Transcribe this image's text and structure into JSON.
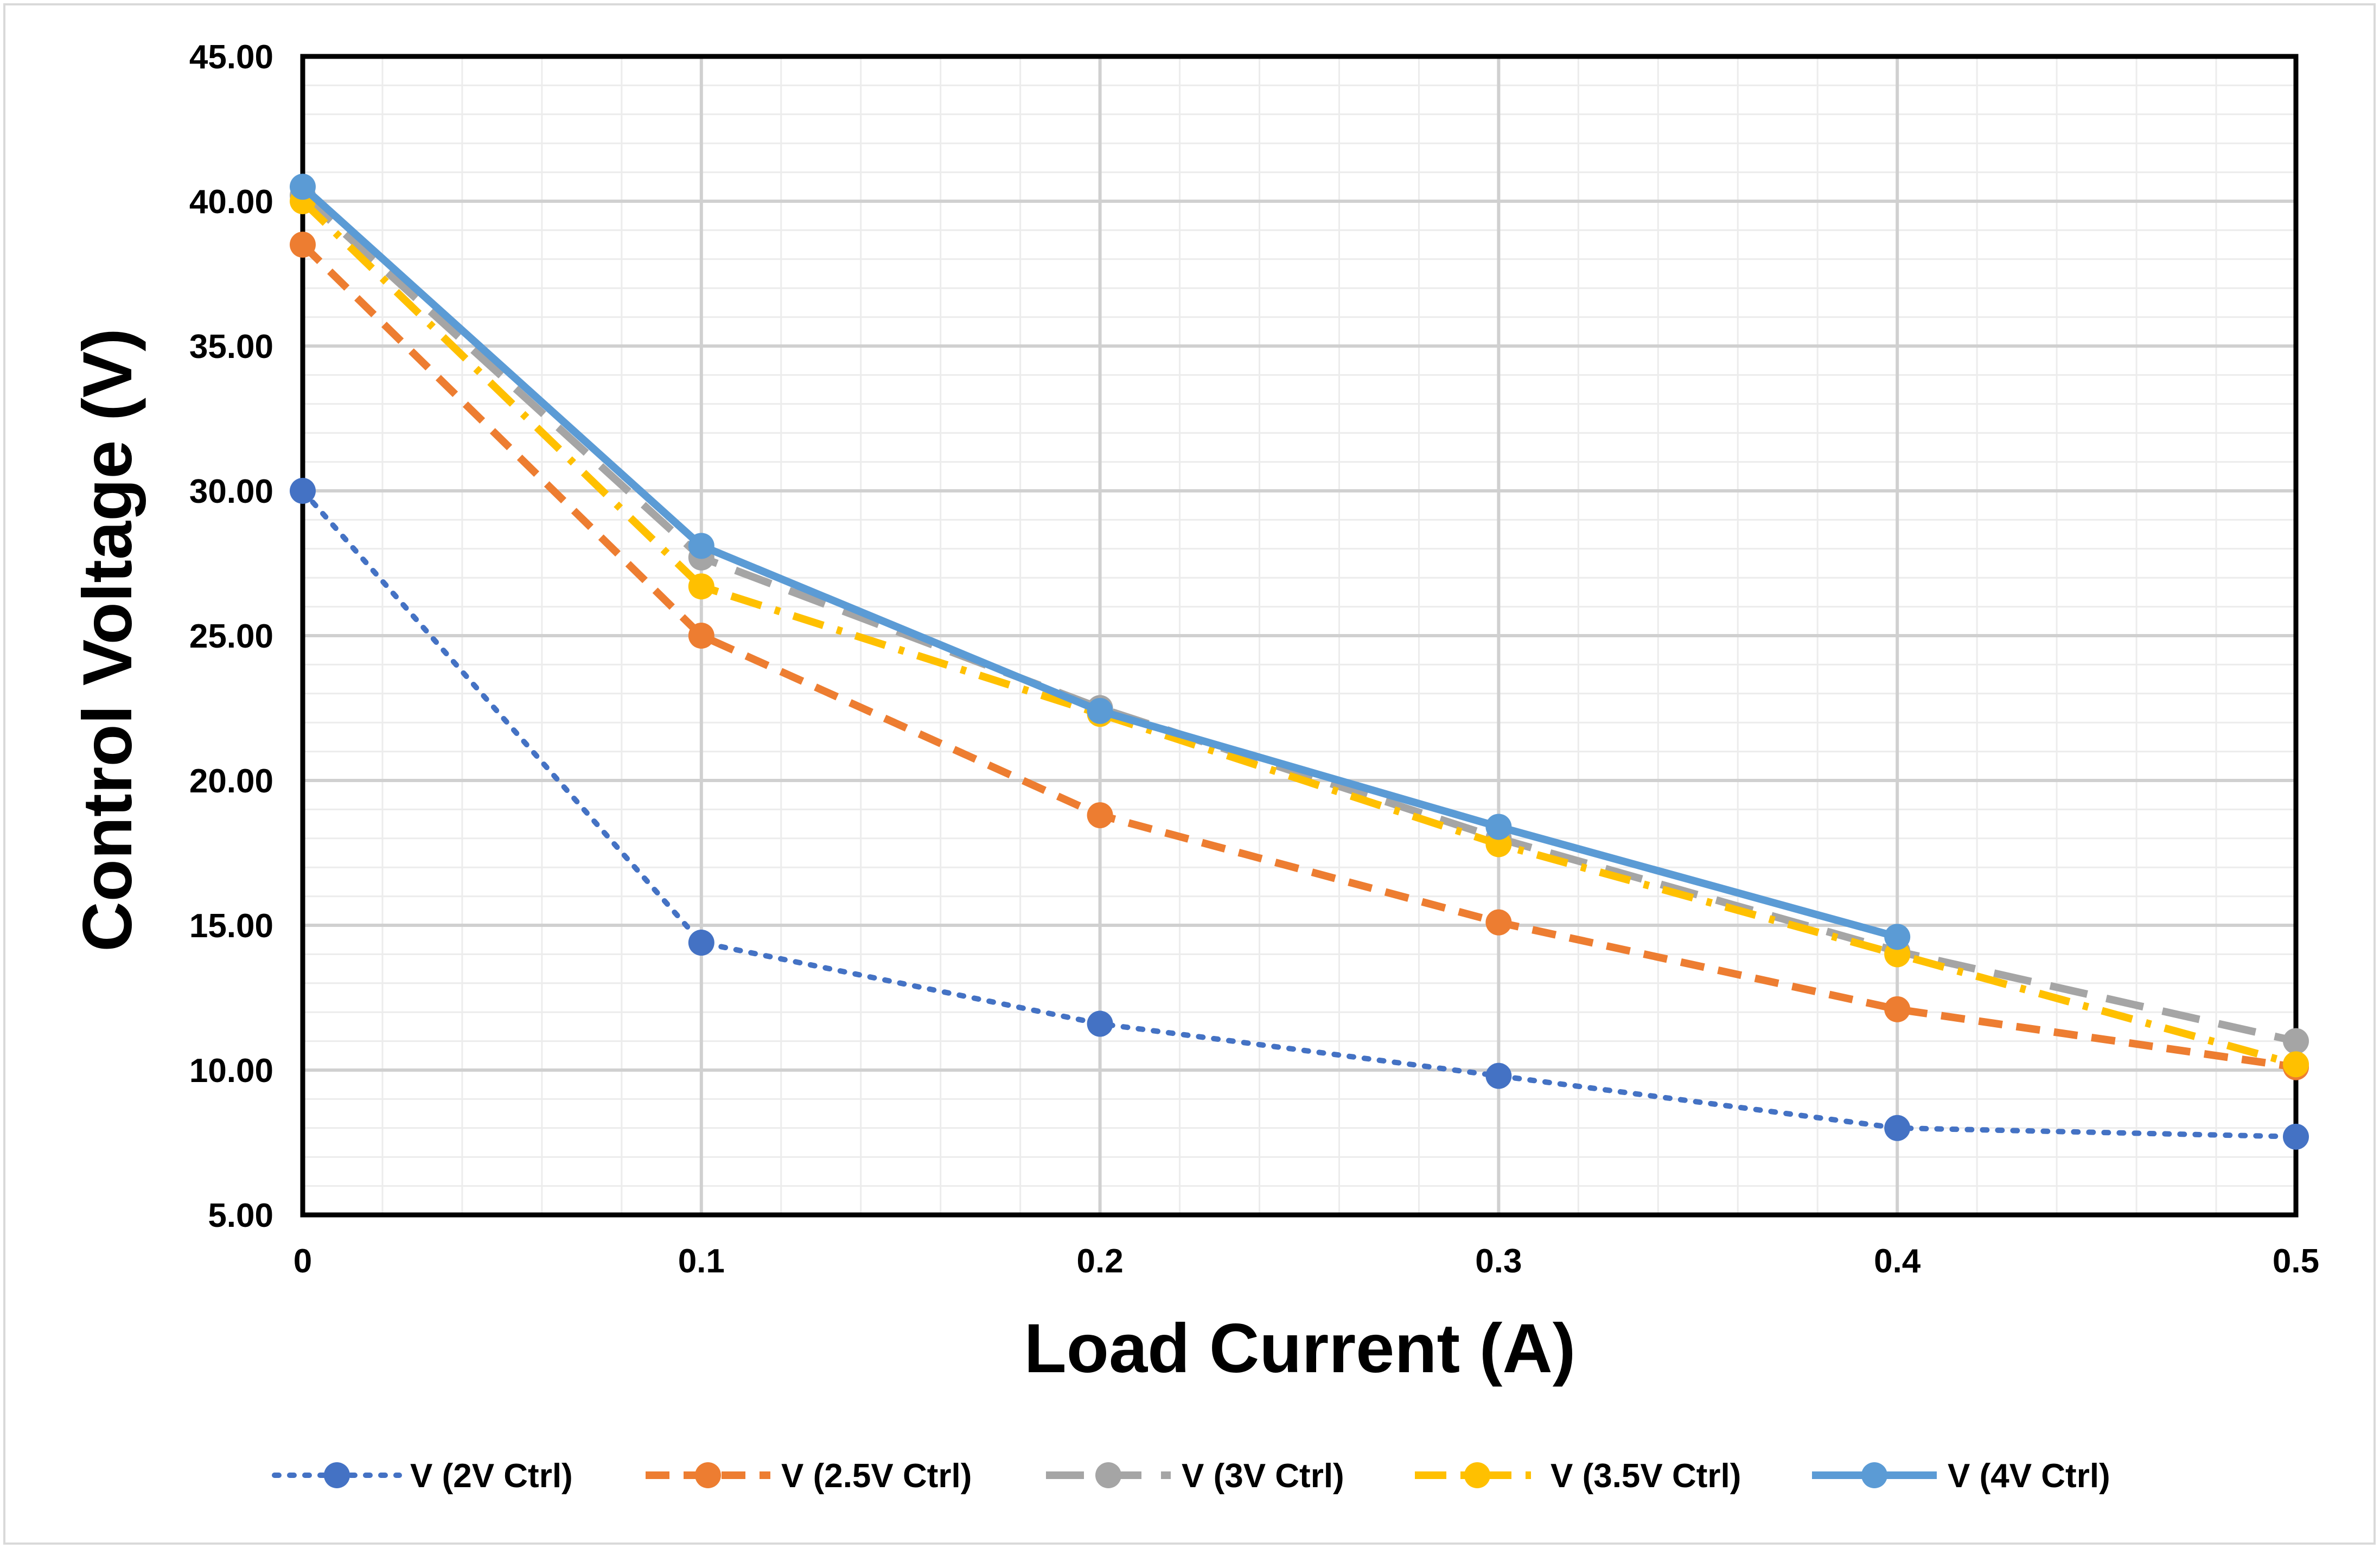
{
  "chart_data": {
    "type": "line",
    "title": "",
    "xlabel": "Load Current (A)",
    "ylabel": "Control Voltage (V)",
    "xlim": [
      0,
      0.5
    ],
    "ylim": [
      5,
      45
    ],
    "x_ticks": [
      "0",
      "0.1",
      "0.2",
      "0.3",
      "0.4",
      "0.5"
    ],
    "y_ticks": [
      "5.00",
      "10.00",
      "15.00",
      "20.00",
      "25.00",
      "30.00",
      "35.00",
      "40.00",
      "45.00"
    ],
    "grid": "major and minor",
    "legend_position": "bottom",
    "series": [
      {
        "name": "V (2V Ctrl)",
        "color": "#4472c4",
        "dash": "dotted",
        "x": [
          0,
          0.1,
          0.2,
          0.3,
          0.4,
          0.5
        ],
        "values": [
          30.0,
          14.4,
          11.6,
          9.8,
          8.0,
          7.7
        ]
      },
      {
        "name": "V (2.5V Ctrl)",
        "color": "#ed7d31",
        "dash": "dashed",
        "x": [
          0,
          0.1,
          0.2,
          0.3,
          0.4,
          0.5
        ],
        "values": [
          38.5,
          25.0,
          18.8,
          15.1,
          12.1,
          10.1
        ]
      },
      {
        "name": "V (3V Ctrl)",
        "color": "#a5a5a5",
        "dash": "long-dash",
        "x": [
          0,
          0.1,
          0.2,
          0.3,
          0.4,
          0.5
        ],
        "values": [
          40.2,
          27.7,
          22.5,
          18.0,
          14.1,
          11.0
        ]
      },
      {
        "name": "V (3.5V Ctrl)",
        "color": "#ffc000",
        "dash": "dash-dot",
        "x": [
          0,
          0.1,
          0.2,
          0.3,
          0.4,
          0.5
        ],
        "values": [
          40.0,
          26.7,
          22.3,
          17.8,
          14.0,
          10.2
        ]
      },
      {
        "name": "V (4V Ctrl)",
        "color": "#5b9bd5",
        "dash": "solid",
        "x": [
          0,
          0.1,
          0.2,
          0.3,
          0.4
        ],
        "values": [
          40.5,
          28.1,
          22.4,
          18.4,
          14.6
        ]
      }
    ]
  }
}
